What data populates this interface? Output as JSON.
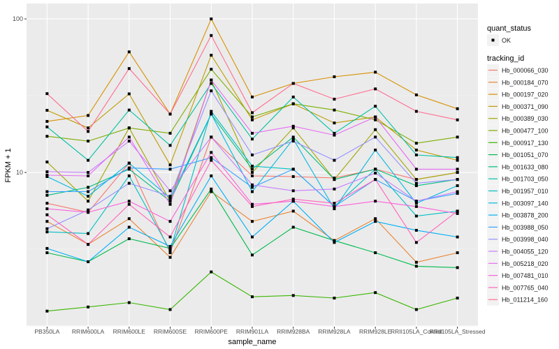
{
  "chart_data": {
    "type": "line",
    "xlabel": "sample_name",
    "ylabel": "FPKM + 1",
    "y_scale": "log10",
    "ylim": [
      0.99,
      126
    ],
    "y_ticks": [
      10,
      100
    ],
    "y_tick_labels": [
      "10",
      "100"
    ],
    "grid": true,
    "legend_position": "right",
    "categories": [
      "PB350LA",
      "RRIM600LA",
      "RRIM600LE",
      "RRIM600SE",
      "RRIM600PE",
      "RRIM901LA",
      "RRIM928BA",
      "RRIM928LA",
      "RRIM928LE",
      "RRII105LA_Control",
      "RRII105LA_Stressed"
    ],
    "point_legend": {
      "title": "quant_status",
      "entries": [
        "OK"
      ]
    },
    "line_legend_title": "tracking_id",
    "series": [
      {
        "name": "Hb_000066_030",
        "color": "#F8766D",
        "values": [
          6.3,
          5.5,
          11.5,
          3.0,
          17,
          9.5,
          9.4,
          9.2,
          10.5,
          9.0,
          10.0
        ]
      },
      {
        "name": "Hb_000184_070",
        "color": "#EA8331",
        "values": [
          4.8,
          3.4,
          5.0,
          2.8,
          7.5,
          4.8,
          5.6,
          3.6,
          5.0,
          2.6,
          3.0
        ]
      },
      {
        "name": "Hb_000197_020",
        "color": "#D89000",
        "values": [
          21.5,
          23.5,
          61,
          24,
          100,
          31,
          38,
          42,
          45,
          32,
          26
        ]
      },
      {
        "name": "Hb_000371_090",
        "color": "#C09B00",
        "values": [
          25.4,
          19.5,
          32.5,
          11.2,
          58,
          22,
          28,
          21,
          23,
          14,
          12
        ]
      },
      {
        "name": "Hb_000389_030",
        "color": "#A3A500",
        "values": [
          11.7,
          6.5,
          19.5,
          6.5,
          40,
          10,
          19.5,
          9,
          19,
          9,
          10
        ]
      },
      {
        "name": "Hb_000477_100",
        "color": "#7CAE00",
        "values": [
          17.2,
          16,
          19.5,
          18,
          47,
          23,
          28,
          25.5,
          22,
          15.5,
          17
        ]
      },
      {
        "name": "Hb_000917_130",
        "color": "#39B600",
        "values": [
          1.25,
          1.33,
          1.42,
          1.28,
          2.25,
          1.55,
          1.58,
          1.52,
          1.65,
          1.28,
          1.52
        ]
      },
      {
        "name": "Hb_001051_070",
        "color": "#00BB4E",
        "values": [
          3.0,
          2.62,
          3.7,
          3.2,
          7.8,
          2.9,
          4.4,
          3.6,
          3.0,
          2.45,
          2.4
        ]
      },
      {
        "name": "Hb_001633_080",
        "color": "#00BF7D",
        "values": [
          7.1,
          8.0,
          10.5,
          6.5,
          24,
          10.5,
          17,
          9.0,
          10.5,
          8.2,
          9.0
        ]
      },
      {
        "name": "Hb_001703_050",
        "color": "#00C1A3",
        "values": [
          19.8,
          12,
          25.5,
          15,
          38,
          16.5,
          31,
          18,
          27,
          13,
          12.5
        ]
      },
      {
        "name": "Hb_001957_010",
        "color": "#00BFC4",
        "values": [
          4.1,
          4.0,
          9.5,
          3.1,
          25,
          11,
          10.5,
          6.0,
          10.5,
          5.2,
          5.6
        ]
      },
      {
        "name": "Hb_003097_140",
        "color": "#00BAE0",
        "values": [
          9.4,
          7.0,
          11.5,
          6.8,
          24,
          7.5,
          16.5,
          5.8,
          14,
          6.3,
          8.2
        ]
      },
      {
        "name": "Hb_003878_200",
        "color": "#00B0F6",
        "values": [
          3.2,
          2.62,
          4.4,
          3.3,
          9.5,
          3.8,
          6.5,
          3.5,
          4.8,
          4.2,
          3.8
        ]
      },
      {
        "name": "Hb_003988_050",
        "color": "#35A2FF",
        "values": [
          7.5,
          7.5,
          10.7,
          10.5,
          12.5,
          8.0,
          10.5,
          6.0,
          9.0,
          6.5,
          7.3
        ]
      },
      {
        "name": "Hb_003998_040",
        "color": "#9590FF",
        "values": [
          4.3,
          5.7,
          8.5,
          7.0,
          34,
          13,
          16,
          12,
          17,
          8.5,
          9
        ]
      },
      {
        "name": "Hb_004055_120",
        "color": "#C77CFF",
        "values": [
          10.1,
          10,
          16,
          7.6,
          17,
          8.3,
          7.6,
          7.8,
          9.9,
          6.5,
          7.5
        ]
      },
      {
        "name": "Hb_005218_020",
        "color": "#E76BF3",
        "values": [
          9.6,
          9.5,
          17,
          6.2,
          40,
          18,
          20,
          17.5,
          23,
          10.5,
          10.5
        ]
      },
      {
        "name": "Hb_007481_010",
        "color": "#FA62DB",
        "values": [
          5.8,
          5.5,
          6.5,
          4.8,
          13.5,
          6.2,
          6.5,
          6.0,
          6.5,
          6.0,
          5.4
        ]
      },
      {
        "name": "Hb_007765_040",
        "color": "#FF62BC",
        "values": [
          5.3,
          3.4,
          6.2,
          3.8,
          12,
          6.0,
          6.7,
          6.3,
          9.0,
          3.5,
          5.6
        ]
      },
      {
        "name": "Hb_011214_160",
        "color": "#FF6C91",
        "values": [
          32.6,
          18.5,
          47.5,
          24,
          78,
          24.5,
          38,
          30,
          35,
          25,
          22
        ]
      }
    ]
  }
}
